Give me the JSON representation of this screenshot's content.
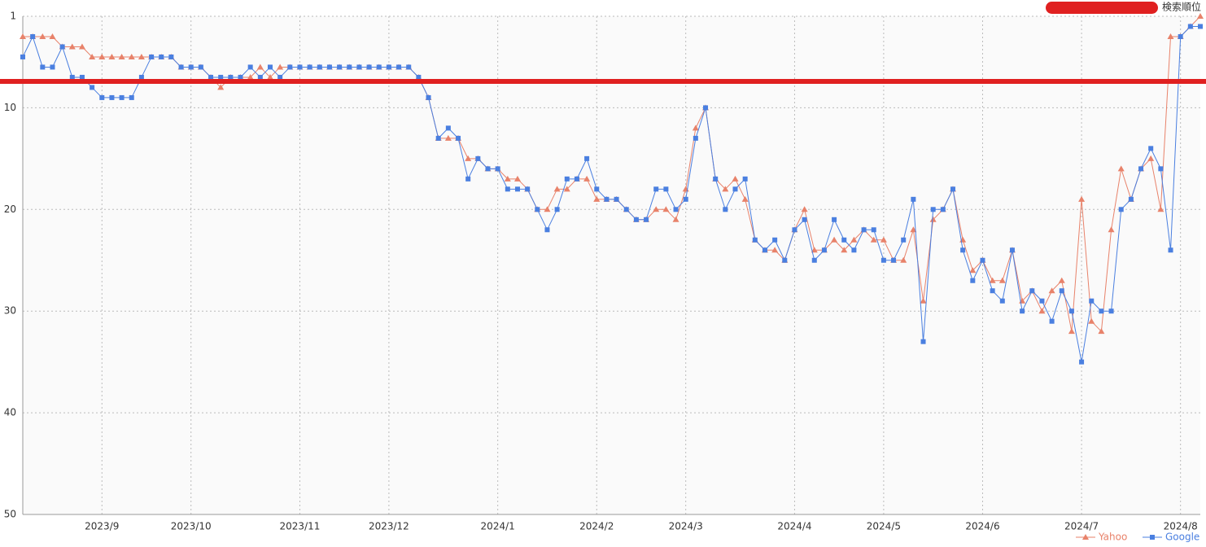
{
  "chart_data": {
    "type": "line",
    "title": "検索順位",
    "categories": [
      null,
      null,
      null,
      null,
      null,
      null,
      null,
      null,
      "2023/9",
      null,
      null,
      null,
      null,
      null,
      null,
      null,
      null,
      "2023/10",
      null,
      null,
      null,
      null,
      null,
      null,
      null,
      null,
      null,
      null,
      "2023/11",
      null,
      null,
      null,
      null,
      null,
      null,
      null,
      null,
      "2023/12",
      null,
      null,
      null,
      null,
      null,
      null,
      null,
      null,
      null,
      null,
      "2024/1",
      null,
      null,
      null,
      null,
      null,
      null,
      null,
      null,
      null,
      "2024/2",
      null,
      null,
      null,
      null,
      null,
      null,
      null,
      null,
      "2024/3",
      null,
      null,
      null,
      null,
      null,
      null,
      null,
      null,
      null,
      null,
      "2024/4",
      null,
      null,
      null,
      null,
      null,
      null,
      null,
      null,
      "2024/5",
      null,
      null,
      null,
      null,
      null,
      null,
      null,
      null,
      null,
      "2024/6",
      null,
      null,
      null,
      null,
      null,
      null,
      null,
      null,
      null,
      "2024/7",
      null,
      null,
      null,
      null,
      null,
      null,
      null,
      null,
      null,
      "2024/8",
      null,
      null
    ],
    "series": [
      {
        "name": "Yahoo",
        "color": "#e8826a",
        "marker": "triangle",
        "values": [
          3,
          3,
          3,
          3,
          4,
          4,
          4,
          5,
          5,
          5,
          5,
          5,
          5,
          5,
          5,
          5,
          6,
          6,
          6,
          7,
          8,
          7,
          7,
          7,
          6,
          7,
          6,
          6,
          6,
          6,
          6,
          6,
          6,
          6,
          6,
          6,
          6,
          6,
          6,
          6,
          7,
          9,
          13,
          13,
          13,
          15,
          15,
          16,
          16,
          17,
          17,
          18,
          20,
          20,
          18,
          18,
          17,
          17,
          19,
          19,
          19,
          20,
          21,
          21,
          20,
          20,
          21,
          18,
          12,
          10,
          17,
          18,
          17,
          19,
          23,
          24,
          24,
          25,
          22,
          20,
          24,
          24,
          23,
          24,
          23,
          22,
          23,
          23,
          25,
          25,
          22,
          29,
          21,
          20,
          18,
          23,
          26,
          25,
          27,
          27,
          24,
          29,
          28,
          30,
          28,
          27,
          32,
          19,
          31,
          32,
          22,
          16,
          19,
          16,
          15,
          20,
          3,
          3,
          2,
          1
        ]
      },
      {
        "name": "Google",
        "color": "#4a7fe0",
        "marker": "square",
        "values": [
          5,
          3,
          6,
          6,
          4,
          7,
          7,
          8,
          9,
          9,
          9,
          9,
          7,
          5,
          5,
          5,
          6,
          6,
          6,
          7,
          7,
          7,
          7,
          6,
          7,
          6,
          7,
          6,
          6,
          6,
          6,
          6,
          6,
          6,
          6,
          6,
          6,
          6,
          6,
          6,
          7,
          9,
          13,
          12,
          13,
          17,
          15,
          16,
          16,
          18,
          18,
          18,
          20,
          22,
          20,
          17,
          17,
          15,
          18,
          19,
          19,
          20,
          21,
          21,
          18,
          18,
          20,
          19,
          13,
          10,
          17,
          20,
          18,
          17,
          23,
          24,
          23,
          25,
          22,
          21,
          25,
          24,
          21,
          23,
          24,
          22,
          22,
          25,
          25,
          23,
          19,
          33,
          20,
          20,
          18,
          24,
          27,
          25,
          28,
          29,
          24,
          30,
          28,
          29,
          31,
          28,
          30,
          35,
          29,
          30,
          30,
          20,
          19,
          16,
          14,
          16,
          24,
          3,
          2,
          2
        ]
      }
    ],
    "ylim": [
      1,
      50
    ],
    "yticks": [
      1,
      10,
      20,
      30,
      40,
      50
    ],
    "y_reversed": true,
    "grid": true,
    "legend": "bottom-right"
  }
}
